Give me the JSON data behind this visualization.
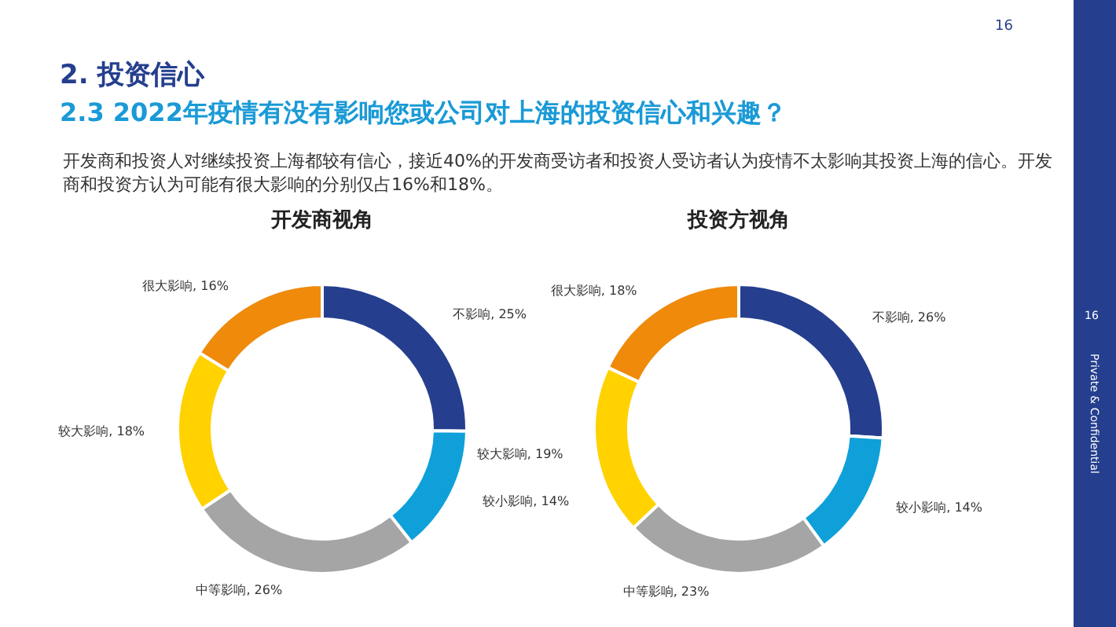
{
  "chart_data": [
    {
      "type": "other",
      "title": "2. 投资信心",
      "subtitle": "2.3 2022年疫情有没有影响您或公司对上海的投资信心和兴趣？",
      "annotations": [
        "开发商和投资人对继续投资上海都较有信心，接近40%的开发商受访者和投资人受访者认为疫情不太影响其投资上海的信心。开发商和投资方认为可能有很大影响的分别仅占16%和18%。",
        "16",
        "16",
        "Private & Confidential"
      ]
    },
    {
      "type": "donut",
      "title": "开发商视角",
      "categories": [
        "不影响",
        "较小影响",
        "中等影响",
        "较大影响",
        "很大影响"
      ],
      "values": [
        25,
        14,
        26,
        18,
        16
      ],
      "value_labels": [
        "25%",
        "14%",
        "26%",
        "18%",
        "16%"
      ],
      "colors": [
        "#253f8e",
        "#0fa0da",
        "#a5a5a5",
        "#ffd200",
        "#ef8a0b"
      ],
      "data_labels": true,
      "legend": false
    },
    {
      "type": "donut",
      "title": "投资方视角",
      "categories": [
        "不影响",
        "较小影响",
        "中等影响",
        "较大影响",
        "很大影响"
      ],
      "values": [
        26,
        14,
        23,
        19,
        18
      ],
      "value_labels": [
        "26%",
        "14%",
        "23%",
        "19%",
        "18%"
      ],
      "colors": [
        "#253f8e",
        "#0fa0da",
        "#a5a5a5",
        "#ffd200",
        "#ef8a0b"
      ],
      "data_labels": true,
      "legend": false
    }
  ]
}
